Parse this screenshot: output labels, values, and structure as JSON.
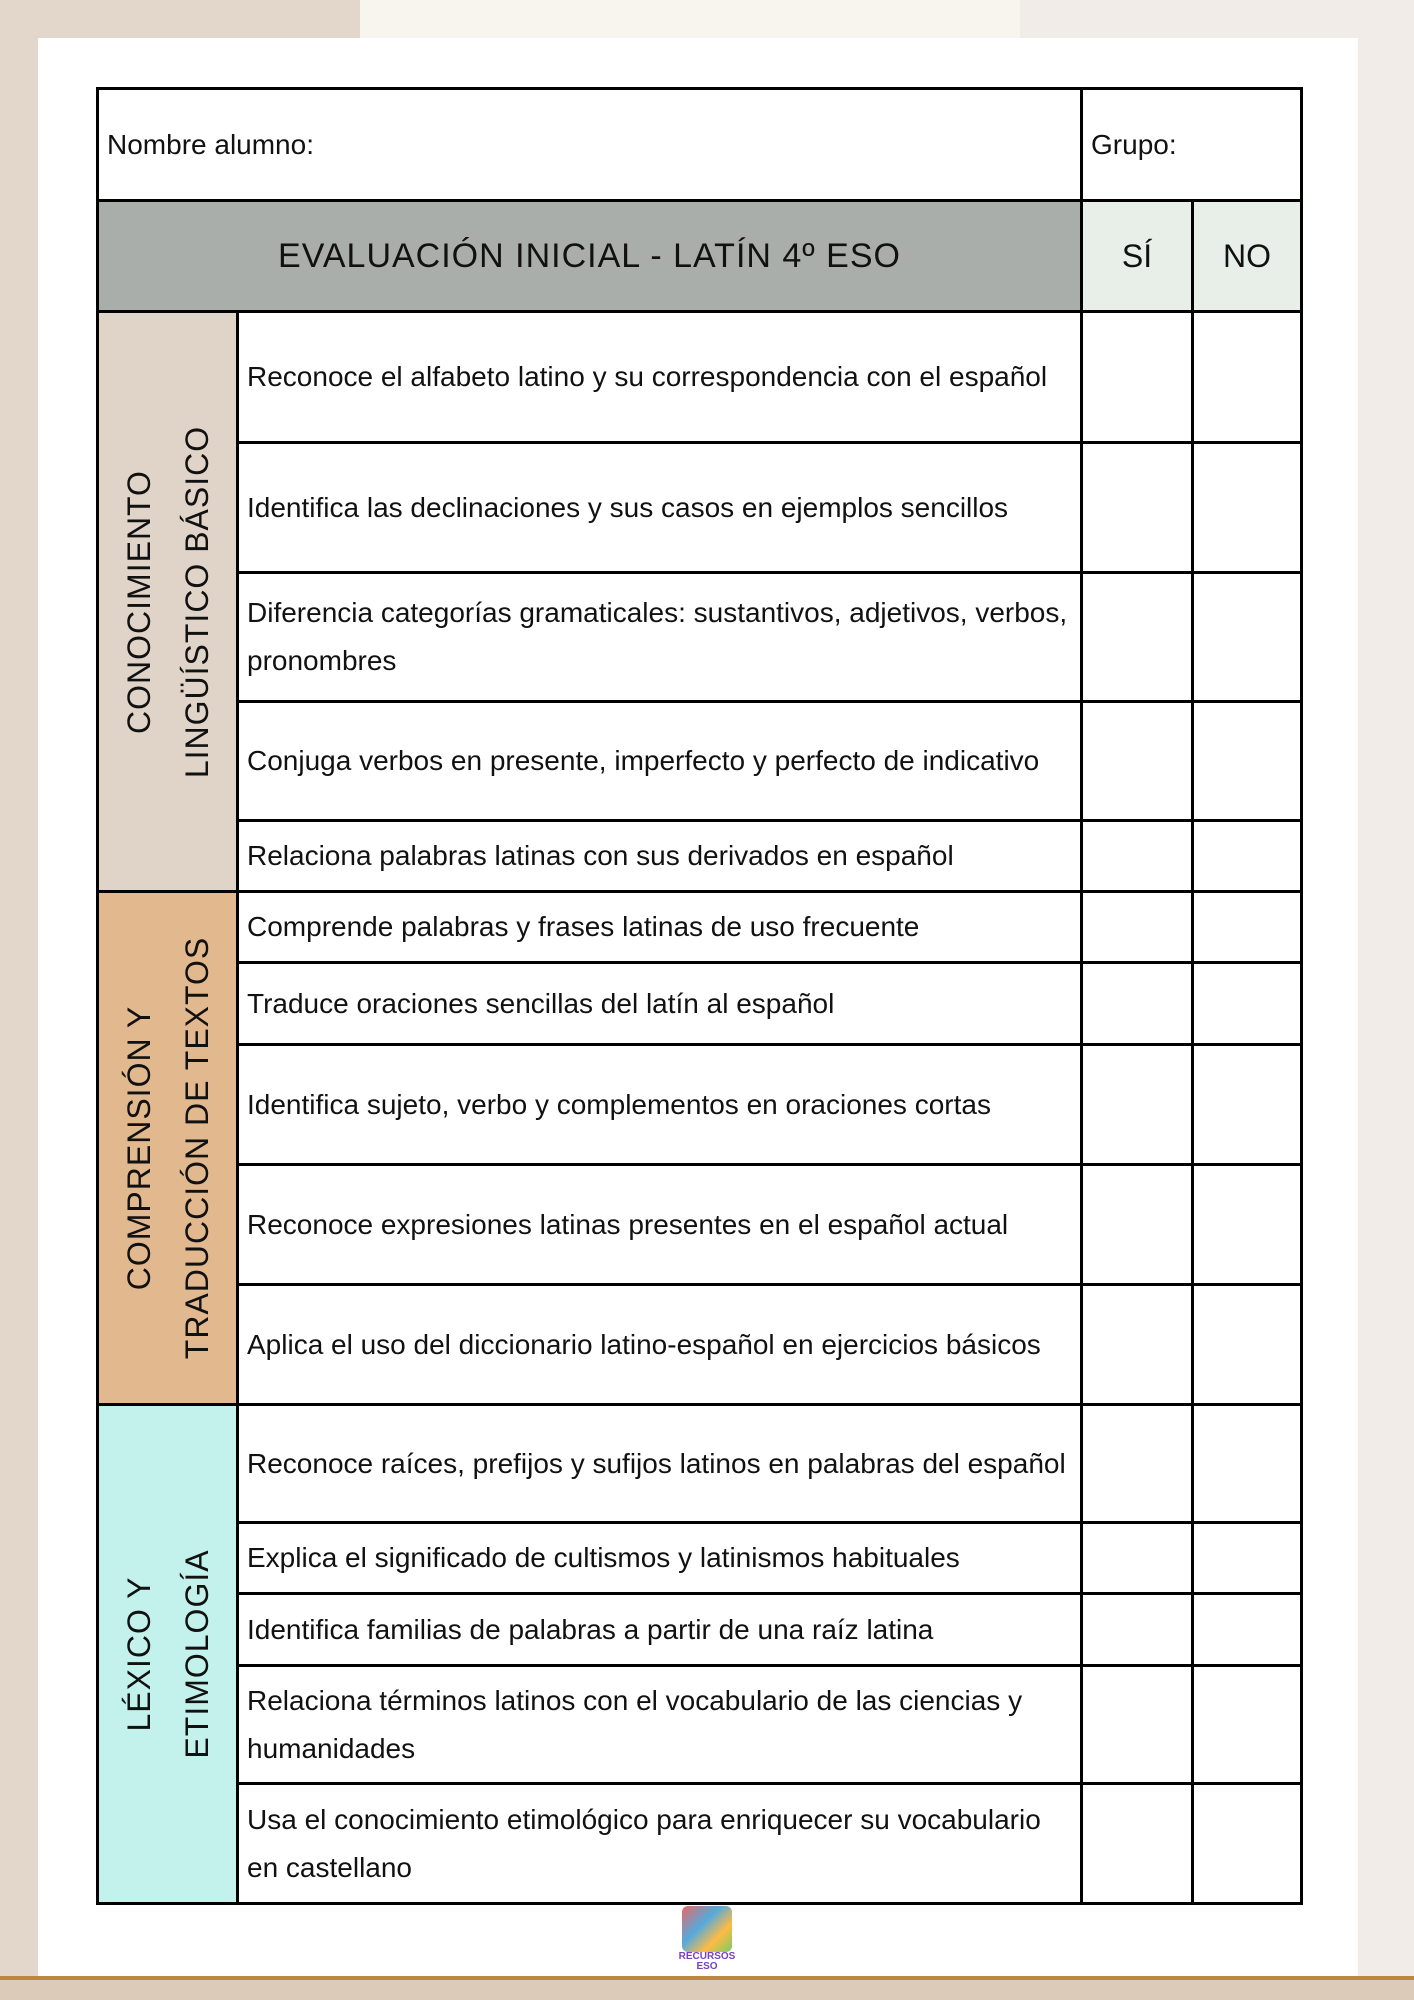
{
  "header": {
    "name_label": "Nombre alumno:",
    "group_label": "Grupo:"
  },
  "title": "EVALUACIÓN INICIAL - LATÍN 4º ESO",
  "columns": {
    "yes": "SÍ",
    "no": "NO"
  },
  "categories": [
    {
      "label_line1": "CONOCIMIENTO",
      "label_line2": "LINGÜÍSTICO BÁSICO",
      "color": "#e0d4c8",
      "items": [
        "Reconoce el alfabeto latino y su correspondencia con el español",
        "Identifica las declinaciones y sus casos en ejemplos sencillos",
        "Diferencia categorías gramaticales: sustantivos, adjetivos, verbos, pronombres",
        "Conjuga verbos en presente, imperfecto y perfecto de indicativo",
        "Relaciona palabras latinas con sus derivados en español"
      ]
    },
    {
      "label_line1": "COMPRENSIÓN Y",
      "label_line2": "TRADUCCIÓN DE TEXTOS",
      "color": "#e2b88e",
      "items": [
        "Comprende palabras y frases latinas de uso frecuente",
        "Traduce oraciones sencillas del latín al español",
        "Identifica sujeto, verbo y complementos en oraciones cortas",
        "Reconoce expresiones latinas presentes en el español actual",
        "Aplica el uso del diccionario latino-español en ejercicios básicos"
      ]
    },
    {
      "label_line1": "LÉXICO Y",
      "label_line2": "ETIMOLOGÍA",
      "color": "#c3f2ec",
      "items": [
        "Reconoce raíces, prefijos y sufijos latinos en palabras del español",
        "Explica el significado de cultismos y latinismos habituales",
        "Identifica familias de palabras a partir de una raíz latina",
        "Relaciona términos latinos con el vocabulario de las ciencias y humanidades",
        "Usa el conocimiento etimológico para enriquecer su vocabulario en castellano"
      ]
    }
  ],
  "logo": {
    "text": "RECURSOS ESO"
  }
}
